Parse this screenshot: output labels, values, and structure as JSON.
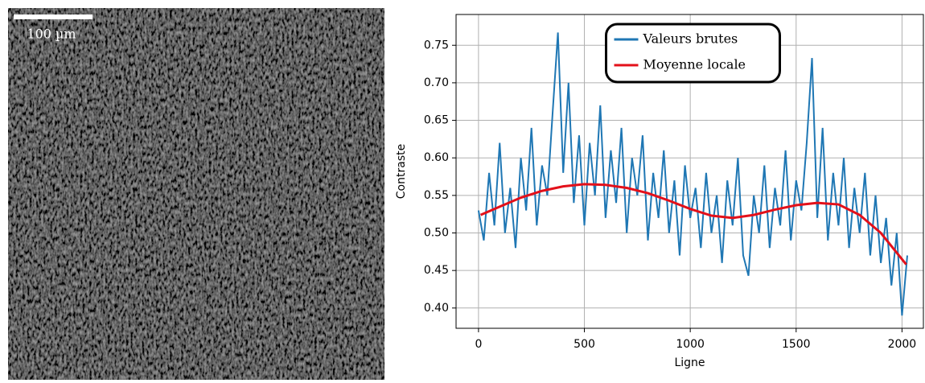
{
  "image": {
    "scale_bar_label": "100 µm"
  },
  "chart_data": {
    "type": "line",
    "xlabel": "Ligne",
    "ylabel": "Contraste",
    "xlim": [
      -106,
      2101
    ],
    "ylim": [
      0.373,
      0.791
    ],
    "xticks": [
      0,
      500,
      1000,
      1500,
      2000
    ],
    "yticks": [
      {
        "value": 0.4,
        "label": "0.40"
      },
      0.45,
      {
        "value": 0.5,
        "label": "0.50"
      },
      0.55,
      {
        "value": 0.6,
        "label": "0.60"
      },
      0.65,
      {
        "value": 0.7,
        "label": "0.70"
      },
      0.75
    ],
    "grid": true,
    "legend": "top-center",
    "series": [
      {
        "name": "Valeurs brutes",
        "color": "#1f77b4",
        "x": [
          0,
          25,
          50,
          75,
          100,
          125,
          150,
          175,
          200,
          225,
          250,
          275,
          300,
          325,
          350,
          375,
          400,
          425,
          450,
          475,
          500,
          525,
          550,
          575,
          600,
          625,
          650,
          675,
          700,
          725,
          750,
          775,
          800,
          825,
          850,
          875,
          900,
          925,
          950,
          975,
          1000,
          1025,
          1050,
          1075,
          1100,
          1125,
          1150,
          1175,
          1200,
          1225,
          1250,
          1275,
          1300,
          1325,
          1350,
          1375,
          1400,
          1425,
          1450,
          1475,
          1500,
          1525,
          1550,
          1575,
          1600,
          1625,
          1650,
          1675,
          1700,
          1725,
          1750,
          1775,
          1800,
          1825,
          1850,
          1875,
          1900,
          1925,
          1950,
          1975,
          2000,
          2025
        ],
        "values": [
          0.53,
          0.49,
          0.58,
          0.51,
          0.62,
          0.5,
          0.56,
          0.48,
          0.6,
          0.53,
          0.64,
          0.51,
          0.59,
          0.55,
          0.66,
          0.767,
          0.58,
          0.7,
          0.54,
          0.63,
          0.51,
          0.62,
          0.55,
          0.67,
          0.52,
          0.61,
          0.54,
          0.64,
          0.5,
          0.6,
          0.55,
          0.63,
          0.49,
          0.58,
          0.52,
          0.61,
          0.5,
          0.57,
          0.47,
          0.59,
          0.52,
          0.56,
          0.48,
          0.58,
          0.5,
          0.55,
          0.46,
          0.57,
          0.51,
          0.6,
          0.47,
          0.443,
          0.55,
          0.5,
          0.59,
          0.48,
          0.56,
          0.51,
          0.61,
          0.49,
          0.57,
          0.53,
          0.62,
          0.733,
          0.52,
          0.64,
          0.49,
          0.58,
          0.51,
          0.6,
          0.48,
          0.56,
          0.5,
          0.58,
          0.47,
          0.55,
          0.46,
          0.52,
          0.43,
          0.5,
          0.39,
          0.47
        ]
      },
      {
        "name": "Moyenne locale",
        "color": "#e3101a",
        "x": [
          10,
          100,
          200,
          300,
          400,
          500,
          600,
          700,
          800,
          900,
          1000,
          1100,
          1200,
          1300,
          1400,
          1500,
          1600,
          1700,
          1800,
          1900,
          2020
        ],
        "values": [
          0.524,
          0.535,
          0.547,
          0.556,
          0.562,
          0.565,
          0.564,
          0.56,
          0.553,
          0.543,
          0.532,
          0.523,
          0.52,
          0.524,
          0.531,
          0.537,
          0.54,
          0.538,
          0.524,
          0.5,
          0.458
        ]
      }
    ]
  }
}
